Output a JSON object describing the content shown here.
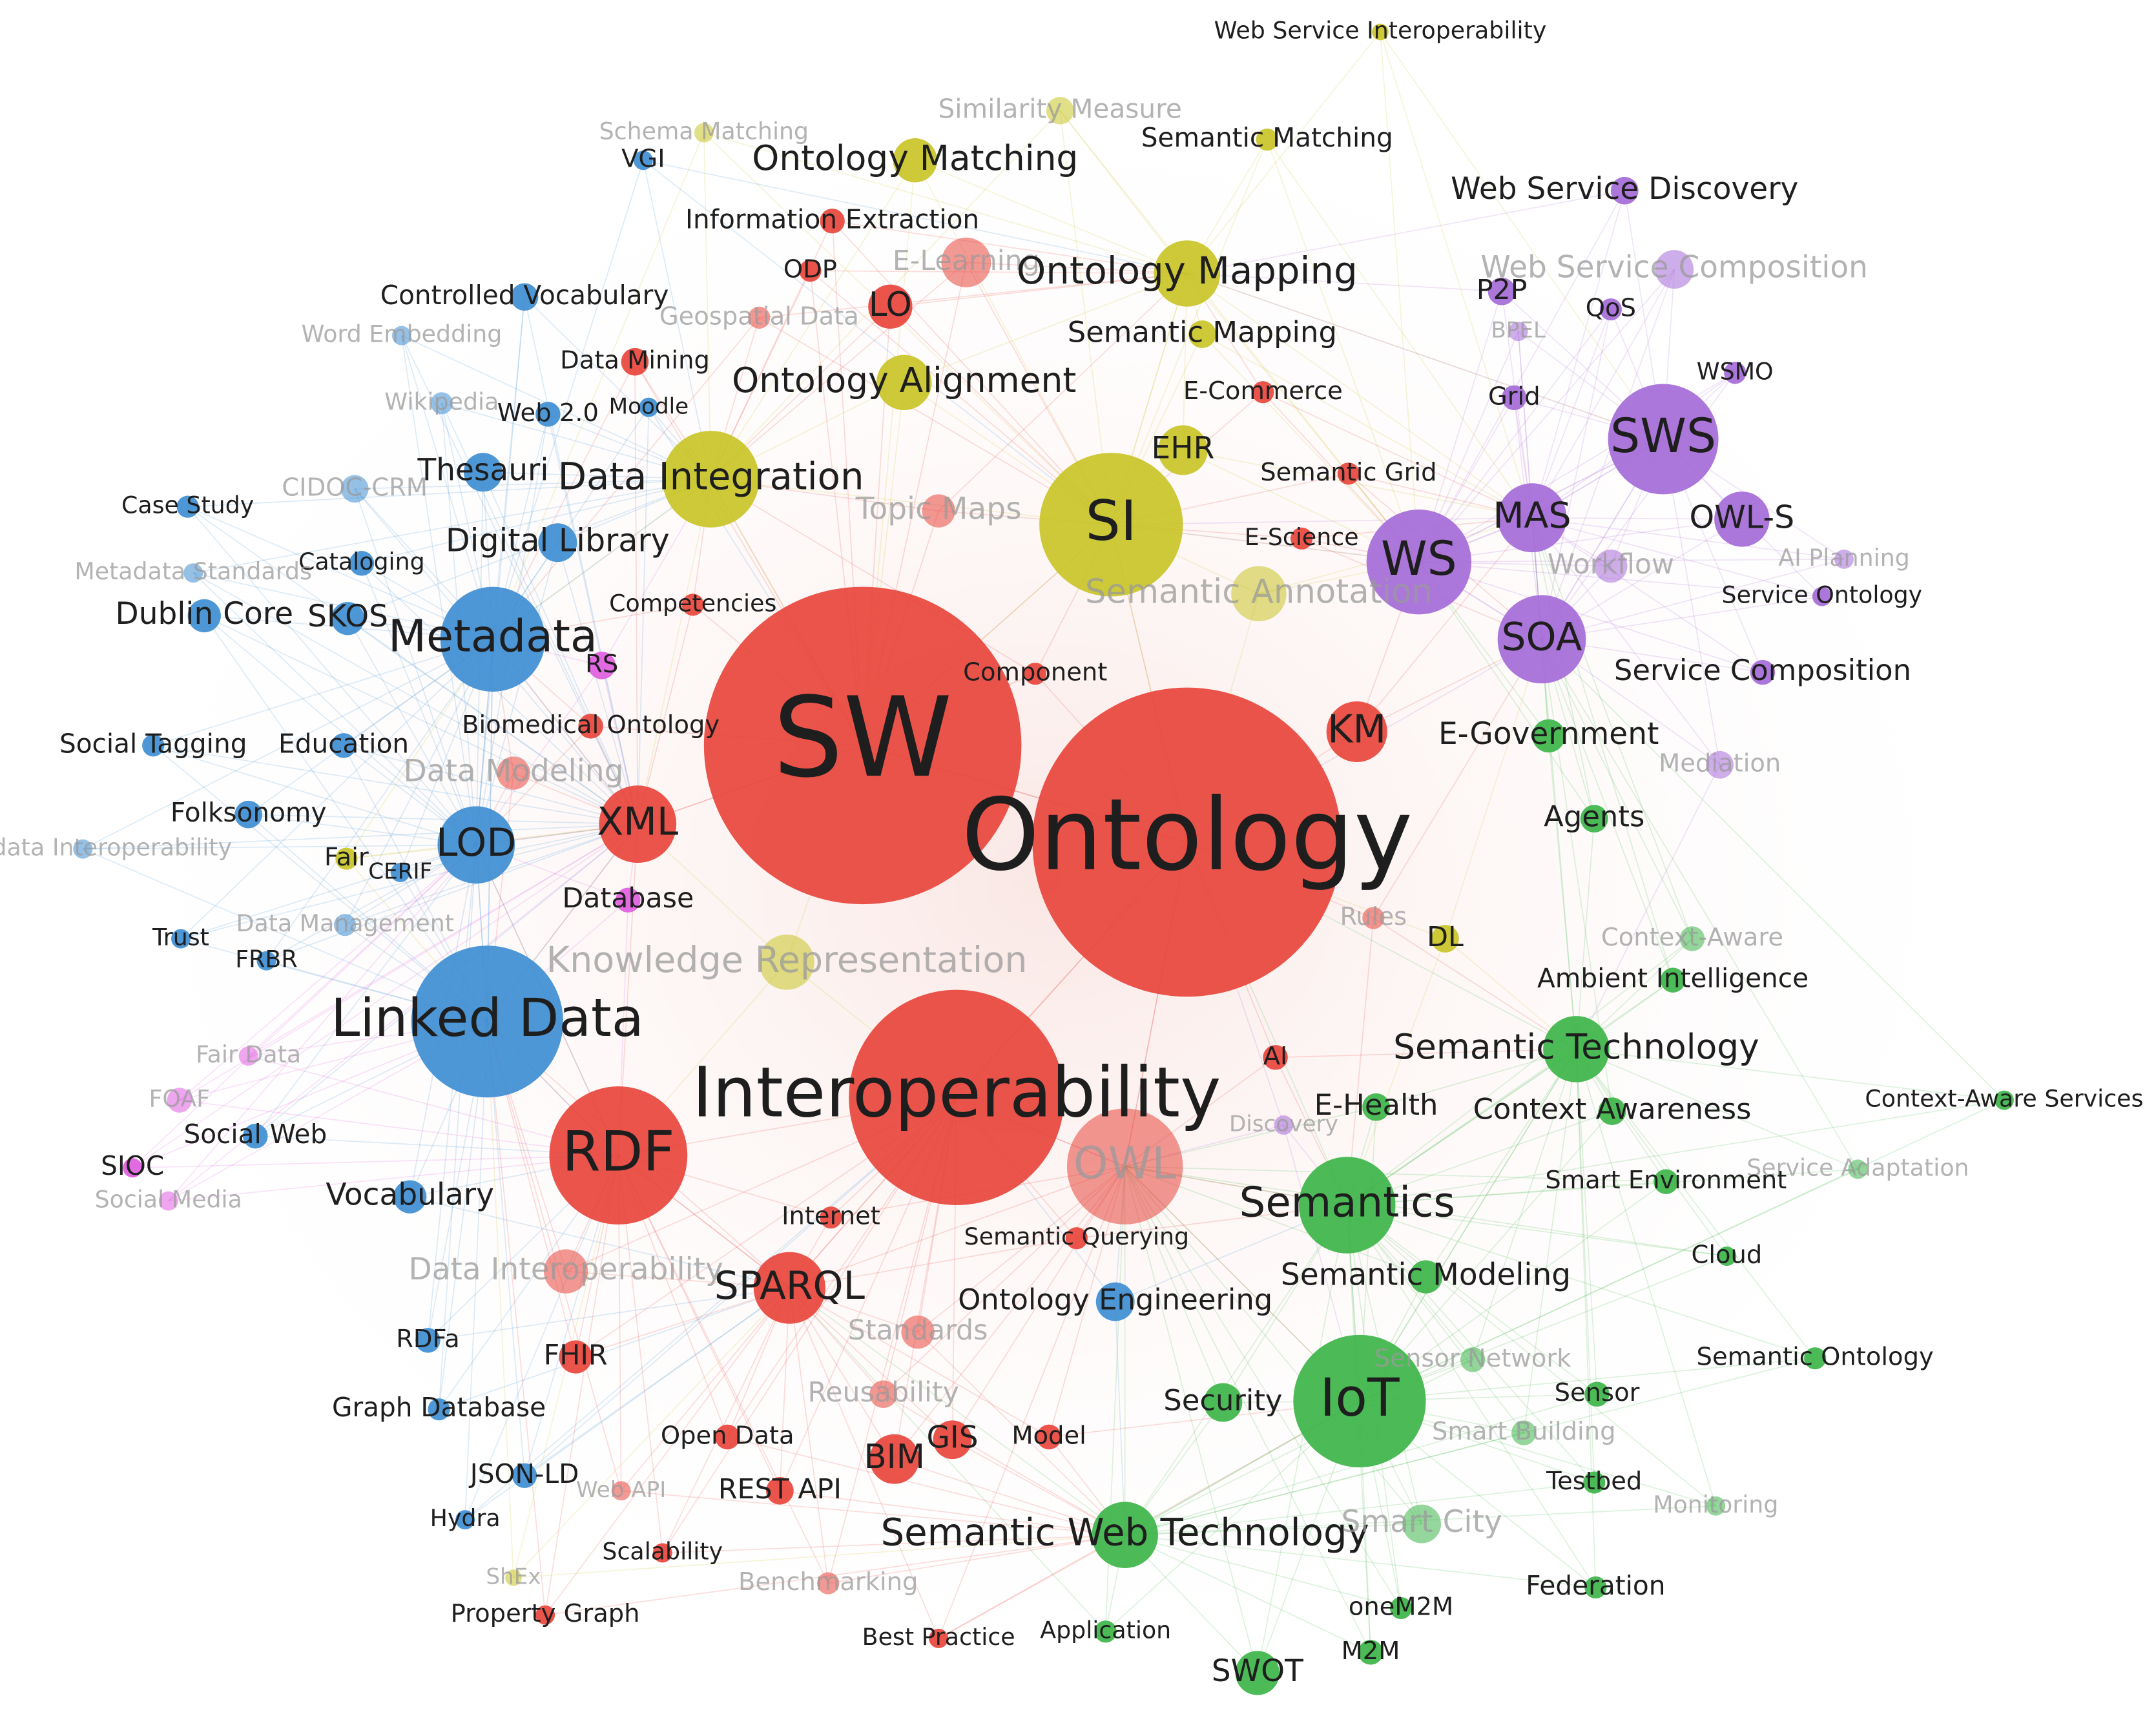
{
  "nodes": [
    {
      "label": "SW",
      "color": "#e8453c"
    },
    {
      "label": "Ontology",
      "color": "#e8453c"
    },
    {
      "label": "Interoperability",
      "color": "#e8453c"
    },
    {
      "label": "RDF",
      "color": "#e8453c"
    },
    {
      "label": "OWL",
      "color": "#e8453c"
    },
    {
      "label": "XML",
      "color": "#e8453c"
    },
    {
      "label": "KM",
      "color": "#e8453c"
    },
    {
      "label": "SPARQL",
      "color": "#e8453c"
    },
    {
      "label": "LO",
      "color": "#e8453c"
    },
    {
      "label": "BIM",
      "color": "#e8453c"
    },
    {
      "label": "GIS",
      "color": "#e8453c"
    },
    {
      "label": "REST API",
      "color": "#e8453c"
    },
    {
      "label": "AI",
      "color": "#e8453c"
    },
    {
      "label": "Component",
      "color": "#e8453c"
    },
    {
      "label": "Competencies",
      "color": "#e8453c"
    },
    {
      "label": "Data Mining",
      "color": "#e8453c"
    },
    {
      "label": "Information Extraction",
      "color": "#e8453c"
    },
    {
      "label": "E-Learning",
      "color": "#e8453c"
    },
    {
      "label": "Topic Maps",
      "color": "#e8453c"
    },
    {
      "label": "Semantic Grid",
      "color": "#e8453c"
    },
    {
      "label": "E-Commerce",
      "color": "#e8453c"
    },
    {
      "label": "E-Science",
      "color": "#e8453c"
    },
    {
      "label": "Internet",
      "color": "#e8453c"
    },
    {
      "label": "Semantic Querying",
      "color": "#e8453c"
    },
    {
      "label": "Standards",
      "color": "#e8453c"
    },
    {
      "label": "Reusability",
      "color": "#e8453c"
    },
    {
      "label": "Model",
      "color": "#e8453c"
    },
    {
      "label": "Open Data",
      "color": "#e8453c"
    },
    {
      "label": "Scalability",
      "color": "#e8453c"
    },
    {
      "label": "Property Graph",
      "color": "#e8453c"
    },
    {
      "label": "Benchmarking",
      "color": "#e8453c"
    },
    {
      "label": "Best Practice",
      "color": "#e8453c"
    },
    {
      "label": "Data Interoperability",
      "color": "#e8453c"
    },
    {
      "label": "Rules",
      "color": "#e8453c"
    },
    {
      "label": "Geospatial Data",
      "color": "#e8453c"
    },
    {
      "label": "Biomedical Ontology",
      "color": "#e8453c"
    },
    {
      "label": "Database",
      "color": "#e05ee0"
    },
    {
      "label": "Knowledge Representation",
      "color": "#c9c427"
    },
    {
      "label": "Data Modeling",
      "color": "#e8453c"
    },
    {
      "label": "FHIR",
      "color": "#e8453c"
    },
    {
      "label": "ShEx",
      "color": "#c9c427"
    },
    {
      "label": "Web API",
      "color": "#e8453c"
    },
    {
      "label": "Discovery",
      "color": "#a56bd8"
    },
    {
      "label": "ODP",
      "color": "#e8453c"
    },
    {
      "label": "SI",
      "color": "#c9c427"
    },
    {
      "label": "Ontology Matching",
      "color": "#c9c427"
    },
    {
      "label": "Ontology Mapping",
      "color": "#c9c427"
    },
    {
      "label": "Ontology Alignment",
      "color": "#c9c427"
    },
    {
      "label": "Data Integration",
      "color": "#c9c427"
    },
    {
      "label": "Semantic Matching",
      "color": "#c9c427"
    },
    {
      "label": "Semantic Mapping",
      "color": "#c9c427"
    },
    {
      "label": "Similarity Measure",
      "color": "#c9c427"
    },
    {
      "label": "Schema Matching",
      "color": "#c9c427"
    },
    {
      "label": "Web Service Interoperability",
      "color": "#c9c427"
    },
    {
      "label": "DL",
      "color": "#c9c427"
    },
    {
      "label": "Semantic Annotation",
      "color": "#c9c427"
    },
    {
      "label": "EHR",
      "color": "#c9c427"
    },
    {
      "label": "Linked Data",
      "color": "#3f8ed2"
    },
    {
      "label": "Metadata",
      "color": "#3f8ed2"
    },
    {
      "label": "LOD",
      "color": "#3f8ed2"
    },
    {
      "label": "Digital Library",
      "color": "#3f8ed2"
    },
    {
      "label": "Thesauri",
      "color": "#3f8ed2"
    },
    {
      "label": "Web 2.0",
      "color": "#3f8ed2"
    },
    {
      "label": "Moodle",
      "color": "#3f8ed2"
    },
    {
      "label": "Controlled Vocabulary",
      "color": "#3f8ed2"
    },
    {
      "label": "Word Embedding",
      "color": "#3f8ed2"
    },
    {
      "label": "Wikipedia",
      "color": "#3f8ed2"
    },
    {
      "label": "VGI",
      "color": "#3f8ed2"
    },
    {
      "label": "CIDOC-CRM",
      "color": "#3f8ed2"
    },
    {
      "label": "Case Study",
      "color": "#3f8ed2"
    },
    {
      "label": "Cataloging",
      "color": "#3f8ed2"
    },
    {
      "label": "Metadata Standards",
      "color": "#3f8ed2"
    },
    {
      "label": "Dublin Core",
      "color": "#3f8ed2"
    },
    {
      "label": "SKOS",
      "color": "#3f8ed2"
    },
    {
      "label": "Social Tagging",
      "color": "#3f8ed2"
    },
    {
      "label": "Education",
      "color": "#3f8ed2"
    },
    {
      "label": "Folksonomy",
      "color": "#3f8ed2"
    },
    {
      "label": "Metadata Interoperability",
      "color": "#3f8ed2"
    },
    {
      "label": "Fair",
      "color": "#c9c427"
    },
    {
      "label": "CERIF",
      "color": "#3f8ed2"
    },
    {
      "label": "Trust",
      "color": "#3f8ed2"
    },
    {
      "label": "FRBR",
      "color": "#3f8ed2"
    },
    {
      "label": "Data Management",
      "color": "#3f8ed2"
    },
    {
      "label": "Fair Data",
      "color": "#e05ee0"
    },
    {
      "label": "Social Web",
      "color": "#3f8ed2"
    },
    {
      "label": "Vocabulary",
      "color": "#3f8ed2"
    },
    {
      "label": "RDFa",
      "color": "#3f8ed2"
    },
    {
      "label": "Graph Database",
      "color": "#3f8ed2"
    },
    {
      "label": "JSON-LD",
      "color": "#3f8ed2"
    },
    {
      "label": "Hydra",
      "color": "#3f8ed2"
    },
    {
      "label": "RS",
      "color": "#e05ee0"
    },
    {
      "label": "FOAF",
      "color": "#e05ee0"
    },
    {
      "label": "SIOC",
      "color": "#e05ee0"
    },
    {
      "label": "Social Media",
      "color": "#e05ee0"
    },
    {
      "label": "SWS",
      "color": "#a56bd8"
    },
    {
      "label": "WS",
      "color": "#a56bd8"
    },
    {
      "label": "MAS",
      "color": "#a56bd8"
    },
    {
      "label": "SOA",
      "color": "#a56bd8"
    },
    {
      "label": "OWL-S",
      "color": "#a56bd8"
    },
    {
      "label": "Web Service Discovery",
      "color": "#a56bd8"
    },
    {
      "label": "Web Service Composition",
      "color": "#a56bd8"
    },
    {
      "label": "P2P",
      "color": "#a56bd8"
    },
    {
      "label": "QoS",
      "color": "#a56bd8"
    },
    {
      "label": "BPEL",
      "color": "#a56bd8"
    },
    {
      "label": "WSMO",
      "color": "#a56bd8"
    },
    {
      "label": "Grid",
      "color": "#a56bd8"
    },
    {
      "label": "Workflow",
      "color": "#a56bd8"
    },
    {
      "label": "AI Planning",
      "color": "#a56bd8"
    },
    {
      "label": "Service Ontology",
      "color": "#a56bd8"
    },
    {
      "label": "Service Composition",
      "color": "#a56bd8"
    },
    {
      "label": "Mediation",
      "color": "#a56bd8"
    },
    {
      "label": "E-Government",
      "color": "#3db549"
    },
    {
      "label": "IoT",
      "color": "#3db549"
    },
    {
      "label": "Semantics",
      "color": "#3db549"
    },
    {
      "label": "Semantic Technology",
      "color": "#3db549"
    },
    {
      "label": "Context Awareness",
      "color": "#3db549"
    },
    {
      "label": "E-Health",
      "color": "#3db549"
    },
    {
      "label": "Agents",
      "color": "#3db549"
    },
    {
      "label": "Context-Aware",
      "color": "#3db549"
    },
    {
      "label": "Ambient Intelligence",
      "color": "#3db549"
    },
    {
      "label": "Context-Aware Services",
      "color": "#3db549"
    },
    {
      "label": "Service Adaptation",
      "color": "#3db549"
    },
    {
      "label": "Smart Environment",
      "color": "#3db549"
    },
    {
      "label": "Cloud",
      "color": "#3db549"
    },
    {
      "label": "Semantic Modeling",
      "color": "#3db549"
    },
    {
      "label": "Ontology Engineering",
      "color": "#3f8ed2"
    },
    {
      "label": "Semantic Ontology",
      "color": "#3db549"
    },
    {
      "label": "Sensor Network",
      "color": "#3db549"
    },
    {
      "label": "Sensor",
      "color": "#3db549"
    },
    {
      "label": "Smart Building",
      "color": "#3db549"
    },
    {
      "label": "Testbed",
      "color": "#3db549"
    },
    {
      "label": "Monitoring",
      "color": "#3db549"
    },
    {
      "label": "Security",
      "color": "#3db549"
    },
    {
      "label": "Semantic Web Technology",
      "color": "#3db549"
    },
    {
      "label": "Smart City",
      "color": "#3db549"
    },
    {
      "label": "oneM2M",
      "color": "#3db549"
    },
    {
      "label": "Federation",
      "color": "#3db549"
    },
    {
      "label": "M2M",
      "color": "#3db549"
    },
    {
      "label": "SWOT",
      "color": "#3db549"
    },
    {
      "label": "Application",
      "color": "#3db549"
    }
  ]
}
